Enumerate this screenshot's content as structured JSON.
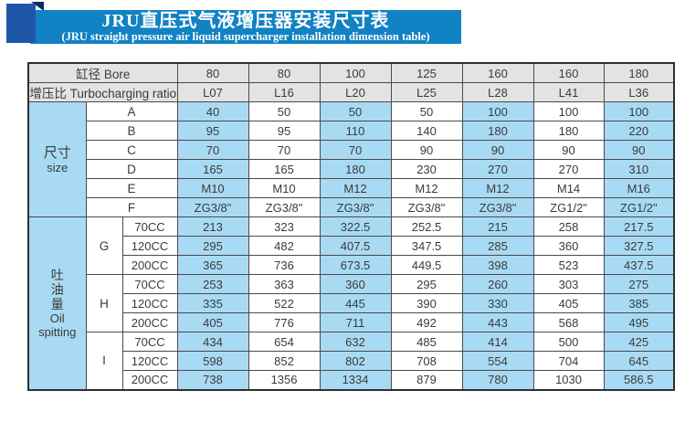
{
  "banner": {
    "title": "JRU直压式气液增压器安装尺寸表",
    "subtitle": "(JRU straight pressure air liquid supercharger installation dimension table)"
  },
  "table": {
    "bore_label": "缸径 Bore",
    "ratio_label": "增压比 Turbocharging ratio",
    "bore_values": [
      "80",
      "80",
      "100",
      "125",
      "160",
      "160",
      "180"
    ],
    "ratio_values": [
      "L07",
      "L16",
      "L20",
      "L25",
      "L28",
      "L41",
      "L36"
    ],
    "size_section": {
      "label_cn": "尺寸",
      "label_en": "size",
      "rows": [
        {
          "label": "A",
          "values": [
            "40",
            "50",
            "50",
            "50",
            "100",
            "100",
            "100"
          ]
        },
        {
          "label": "B",
          "values": [
            "95",
            "95",
            "110",
            "140",
            "180",
            "180",
            "220"
          ]
        },
        {
          "label": "C",
          "values": [
            "70",
            "70",
            "70",
            "90",
            "90",
            "90",
            "90"
          ]
        },
        {
          "label": "D",
          "values": [
            "165",
            "165",
            "180",
            "230",
            "270",
            "270",
            "310"
          ]
        },
        {
          "label": "E",
          "values": [
            "M10",
            "M10",
            "M12",
            "M12",
            "M12",
            "M14",
            "M16"
          ]
        },
        {
          "label": "F",
          "values": [
            "ZG3/8\"",
            "ZG3/8\"",
            "ZG3/8\"",
            "ZG3/8\"",
            "ZG3/8\"",
            "ZG1/2\"",
            "ZG1/2\""
          ]
        }
      ]
    },
    "oil_section": {
      "label_cn": "吐油量",
      "label_en_1": "Oil",
      "label_en_2": "spitting",
      "groups": [
        {
          "label": "G",
          "rows": [
            {
              "label": "70CC",
              "values": [
                "213",
                "323",
                "322.5",
                "252.5",
                "215",
                "258",
                "217.5"
              ]
            },
            {
              "label": "120CC",
              "values": [
                "295",
                "482",
                "407.5",
                "347.5",
                "285",
                "360",
                "327.5"
              ]
            },
            {
              "label": "200CC",
              "values": [
                "365",
                "736",
                "673.5",
                "449.5",
                "398",
                "523",
                "437.5"
              ]
            }
          ]
        },
        {
          "label": "H",
          "rows": [
            {
              "label": "70CC",
              "values": [
                "253",
                "363",
                "360",
                "295",
                "260",
                "303",
                "275"
              ]
            },
            {
              "label": "120CC",
              "values": [
                "335",
                "522",
                "445",
                "390",
                "330",
                "405",
                "385"
              ]
            },
            {
              "label": "200CC",
              "values": [
                "405",
                "776",
                "711",
                "492",
                "443",
                "568",
                "495"
              ]
            }
          ]
        },
        {
          "label": "I",
          "rows": [
            {
              "label": "70CC",
              "values": [
                "434",
                "654",
                "632",
                "485",
                "414",
                "500",
                "425"
              ]
            },
            {
              "label": "120CC",
              "values": [
                "598",
                "852",
                "802",
                "708",
                "554",
                "704",
                "645"
              ]
            },
            {
              "label": "200CC",
              "values": [
                "738",
                "1356",
                "1334",
                "879",
                "780",
                "1030",
                "586.5"
              ]
            }
          ]
        }
      ]
    }
  },
  "colors": {
    "banner_blue": "#1182c3",
    "square_blue": "#1f57a8",
    "fold_navy": "#0d2a66",
    "cell_blue": "#a9daf3",
    "header_gray": "#e3e3e3",
    "border": "#4a4a4a",
    "text": "#3b3b3b"
  }
}
